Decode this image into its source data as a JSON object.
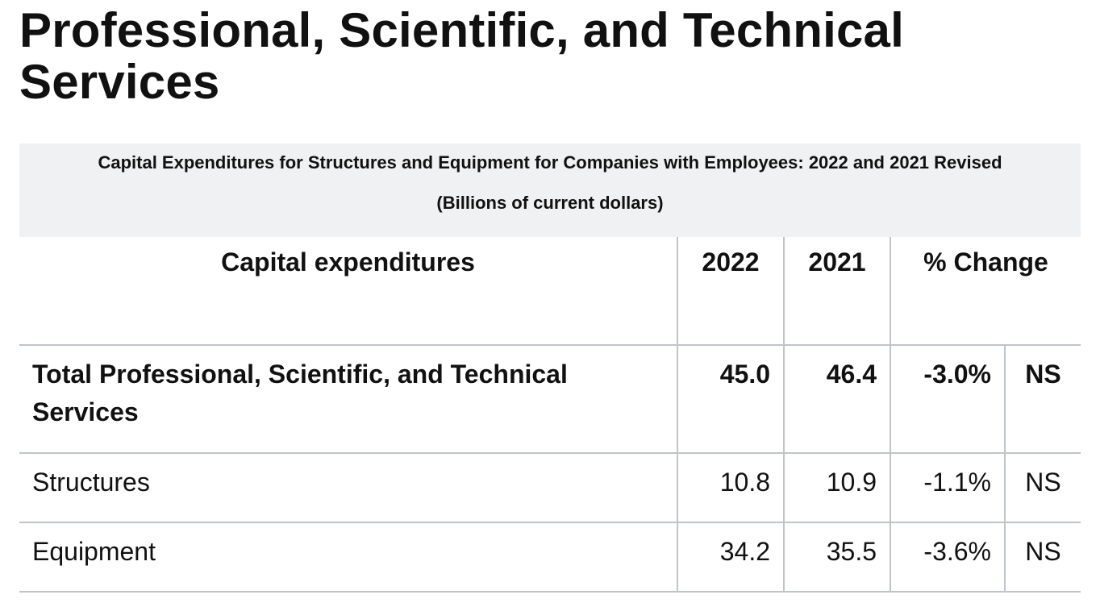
{
  "page": {
    "title": "Professional, Scientific, and Technical Services"
  },
  "table": {
    "caption_line1": "Capital Expenditures for Structures and Equipment for Companies with Employees: 2022 and 2021 Revised",
    "caption_line2": "(Billions of current dollars)",
    "headers": {
      "label": "Capital expenditures",
      "y2022": "2022",
      "y2021": "2021",
      "change": "% Change"
    },
    "rows": [
      {
        "label": "Total Professional, Scientific, and Technical Services",
        "y2022": "45.0",
        "y2021": "46.4",
        "change": "-3.0%",
        "significance": "NS"
      },
      {
        "label": "Structures",
        "y2022": "10.8",
        "y2021": "10.9",
        "change": "-1.1%",
        "significance": "NS"
      },
      {
        "label": "Equipment",
        "y2022": "34.2",
        "y2021": "35.5",
        "change": "-3.6%",
        "significance": "NS"
      }
    ]
  },
  "colors": {
    "caption_background": "#f0f1f2",
    "grid_line": "#bfc4c9",
    "text": "#111111"
  }
}
